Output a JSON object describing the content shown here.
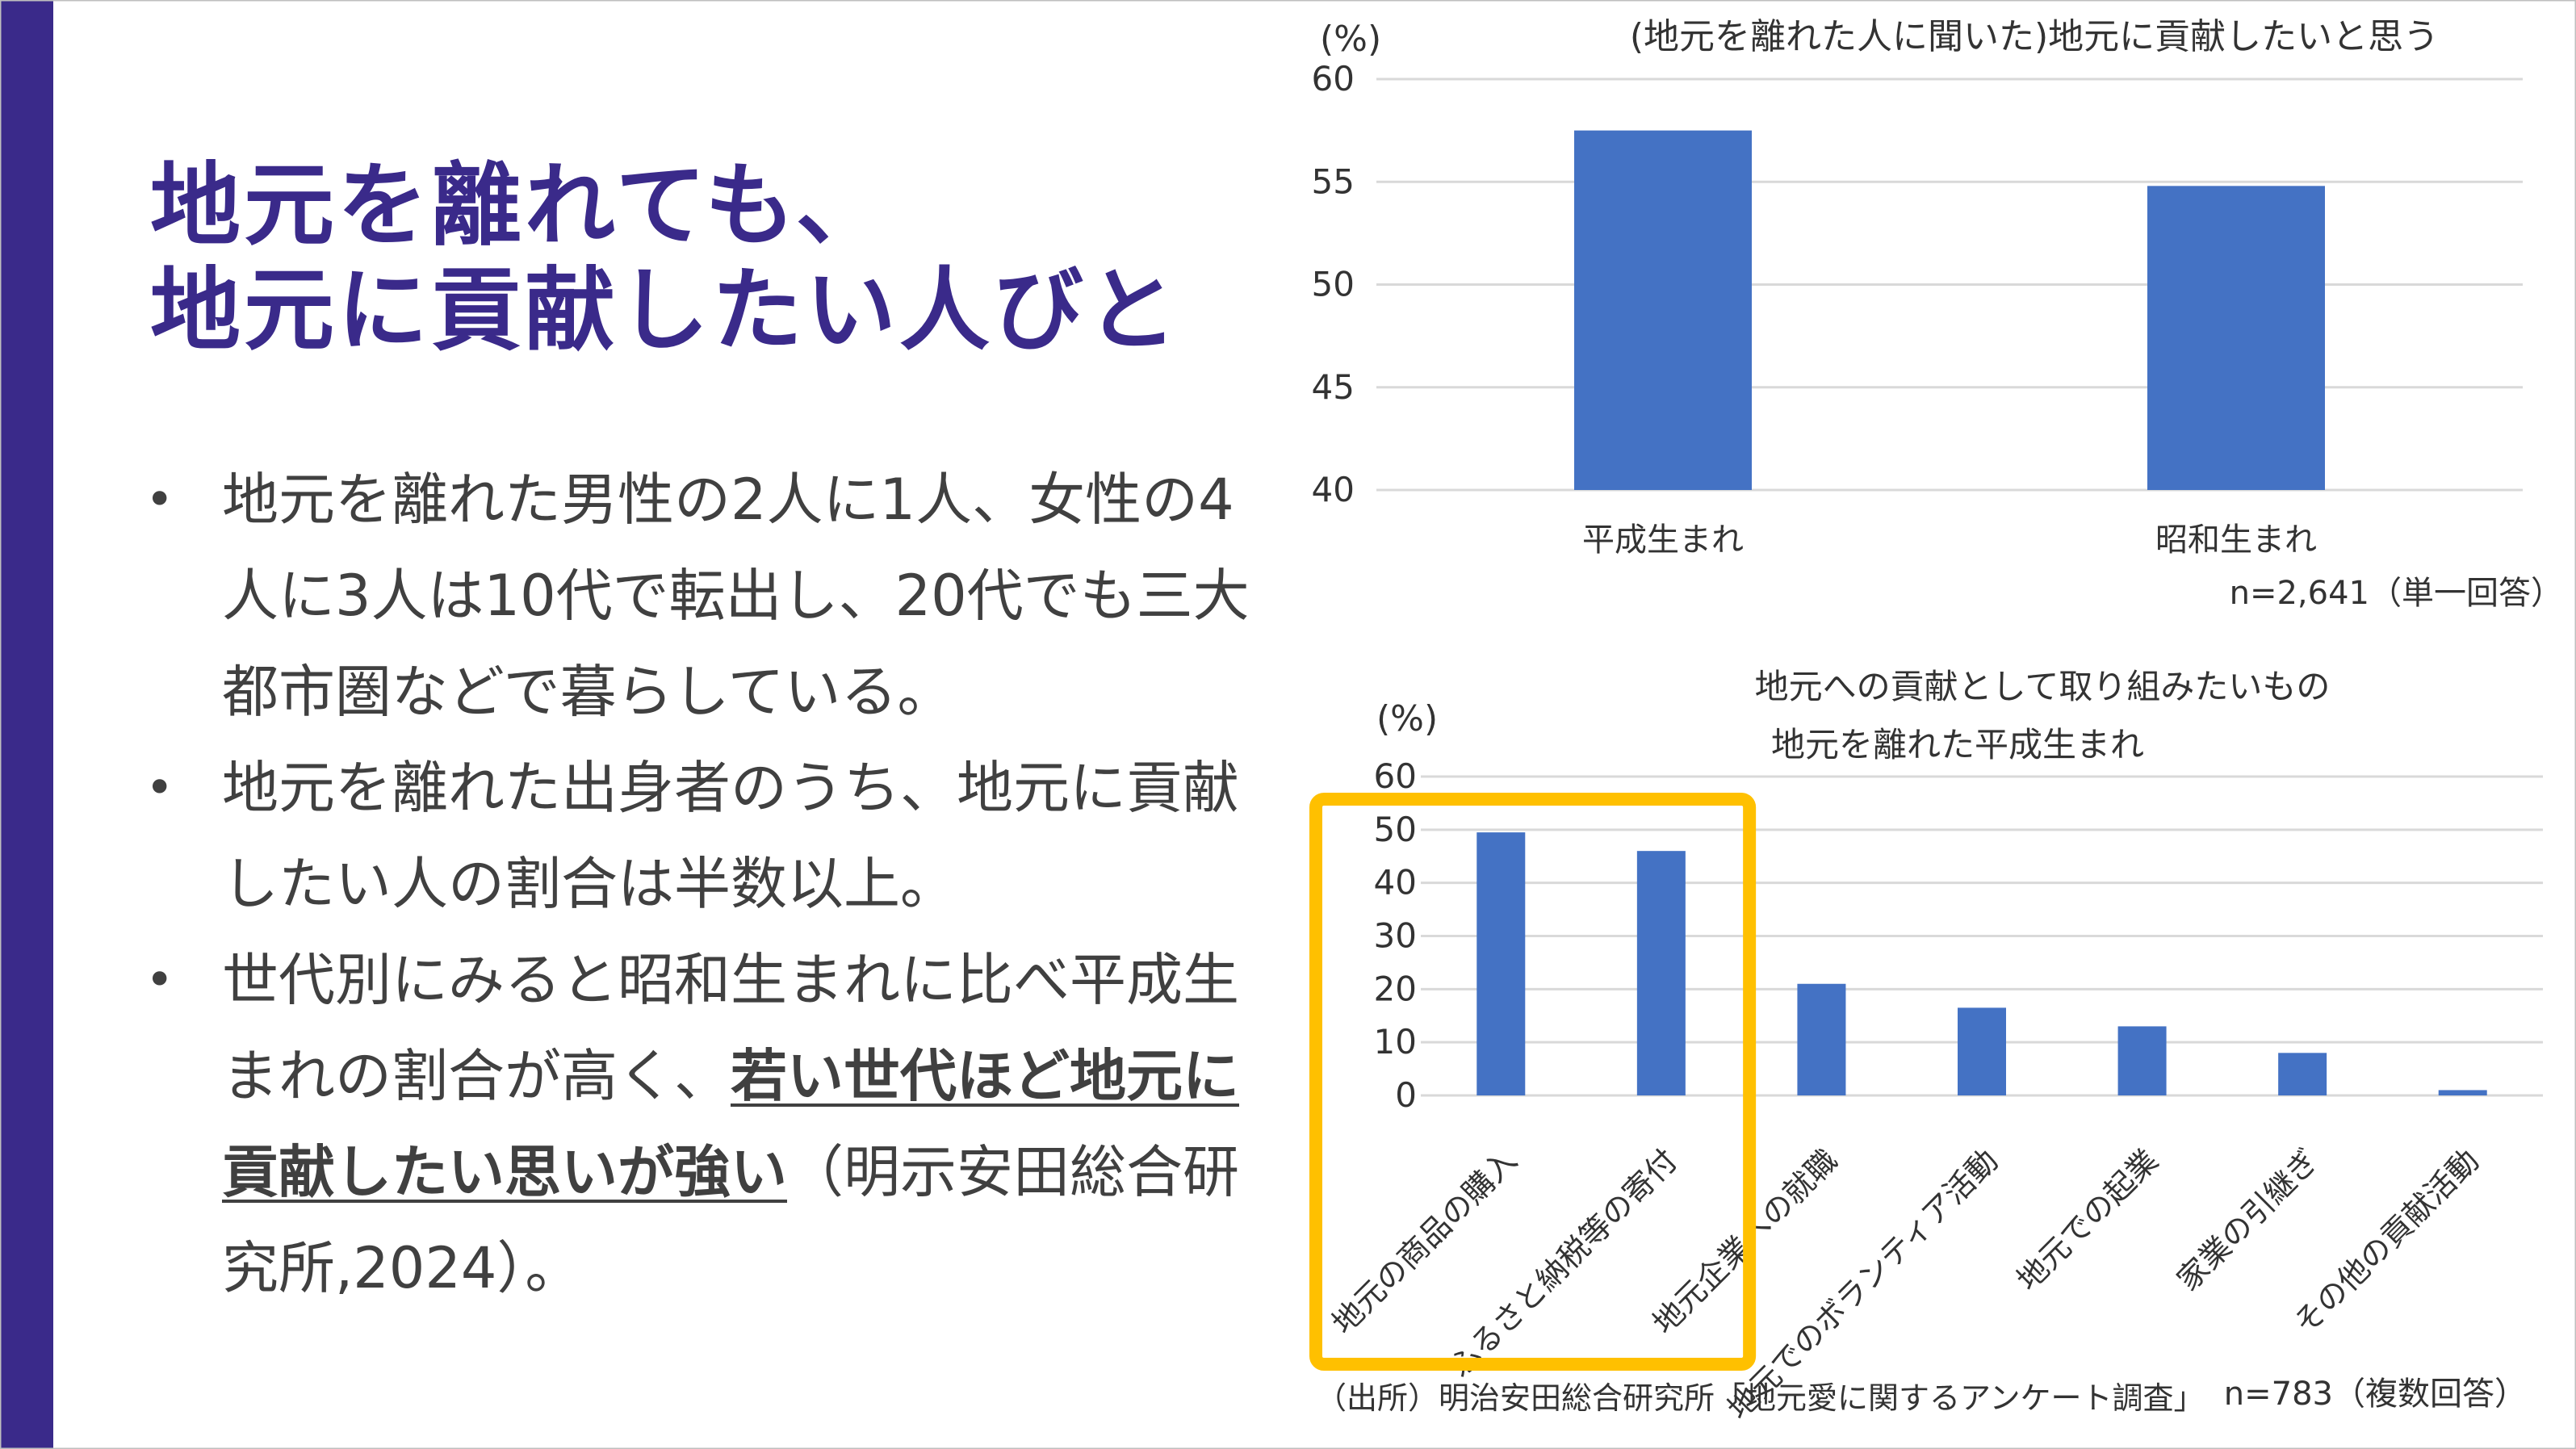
{
  "title_lines": [
    "地元を離れても、",
    "地元に貢献したい人びと"
  ],
  "bullets": [
    {
      "text": "地元を離れた男性の2人に1人、女性の4人に3人は10代で転出し、20代でも三大都市圏などで暮らしている。"
    },
    {
      "text": "地元を離れた出身者のうち、地元に貢献したい人の割合は半数以上。"
    },
    {
      "pre": "世代別にみると昭和生まれに比べ平成生まれの割合が高く、",
      "emph": "若い世代ほど地元に貢献したい思いが強い",
      "post": "（明示安田総合研究所,2024）。"
    }
  ],
  "colors": {
    "accent": "#3a2a8a",
    "bar": "#4472c4",
    "highlight": "#ffc000",
    "grid": "#d9d9d9"
  },
  "chart_data": [
    {
      "type": "bar",
      "title": "(地元を離れた人に聞いた)地元に貢献したいと思う",
      "ylabel": "(%)",
      "categories": [
        "平成生まれ",
        "昭和生まれ"
      ],
      "values": [
        57.5,
        54.8
      ],
      "ylim": [
        40,
        60
      ],
      "yticks": [
        60,
        55,
        50,
        45,
        40
      ],
      "grid": true,
      "note": "n=2,641（単一回答）"
    },
    {
      "type": "bar",
      "title": "地元への貢献として取り組みたいもの",
      "subtitle": "地元を離れた平成生まれ",
      "ylabel": "(%)",
      "categories": [
        "地元の商品の購入",
        "ふるさと納税等の寄付",
        "地元企業への就職",
        "地元でのボランティア活動",
        "地元での起業",
        "家業の引継ぎ",
        "その他の貢献活動"
      ],
      "values": [
        49.5,
        46.0,
        21.0,
        16.5,
        13.0,
        8.0,
        1.0
      ],
      "ylim": [
        0,
        60
      ],
      "yticks": [
        60,
        50,
        40,
        30,
        20,
        10,
        0
      ],
      "grid": true,
      "highlight": [
        "地元の商品の購入",
        "ふるさと納税等の寄付"
      ],
      "note": "n=783（複数回答）"
    }
  ],
  "source": "（出所）明治安田総合研究所「地元愛に関するアンケート調査」"
}
